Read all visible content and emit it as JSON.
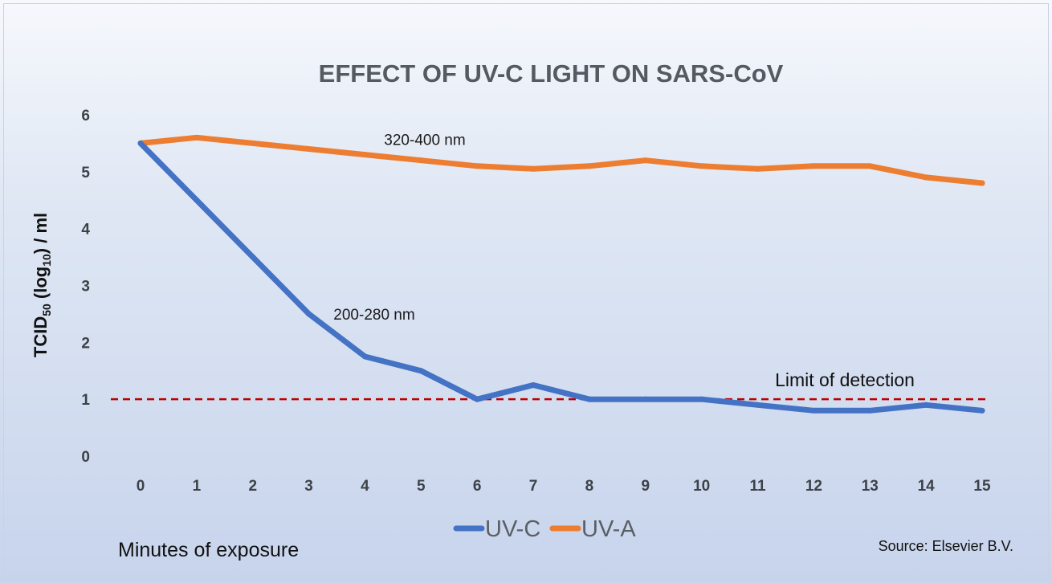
{
  "chart_data": {
    "type": "line",
    "title": "EFFECT OF UV-C LIGHT ON SARS-CoV",
    "ylabel": {
      "main": "TCID",
      "sub1": "50",
      "mid": " (log",
      "sub2": "10",
      "end": ") / ml"
    },
    "xlabel": "Minutes of exposure",
    "x": [
      0,
      1,
      2,
      3,
      4,
      5,
      6,
      7,
      8,
      9,
      10,
      11,
      12,
      13,
      14,
      15
    ],
    "ylim": [
      0,
      6
    ],
    "yticks": [
      0,
      1,
      2,
      3,
      4,
      5,
      6
    ],
    "grid": false,
    "legend_position": "bottom-center",
    "series": [
      {
        "name": "UV-C",
        "color": "#4472c4",
        "values": [
          5.5,
          4.5,
          3.5,
          2.5,
          1.75,
          1.5,
          1.0,
          1.25,
          1.0,
          1.0,
          1.0,
          0.9,
          0.8,
          0.8,
          0.9,
          0.8
        ]
      },
      {
        "name": "UV-A",
        "color": "#ed7d31",
        "values": [
          5.5,
          5.6,
          5.5,
          5.4,
          5.3,
          5.2,
          5.1,
          5.05,
          5.1,
          5.2,
          5.1,
          5.05,
          5.1,
          5.1,
          4.9,
          4.8
        ]
      }
    ],
    "annotations": [
      {
        "text": "320-400 nm",
        "series": "UV-A"
      },
      {
        "text": "200-280 nm",
        "series": "UV-C"
      }
    ],
    "reference_line": {
      "value": 1.0,
      "label": "Limit of detection",
      "color": "#c00000"
    },
    "source": "Source: Elsevier B.V."
  }
}
